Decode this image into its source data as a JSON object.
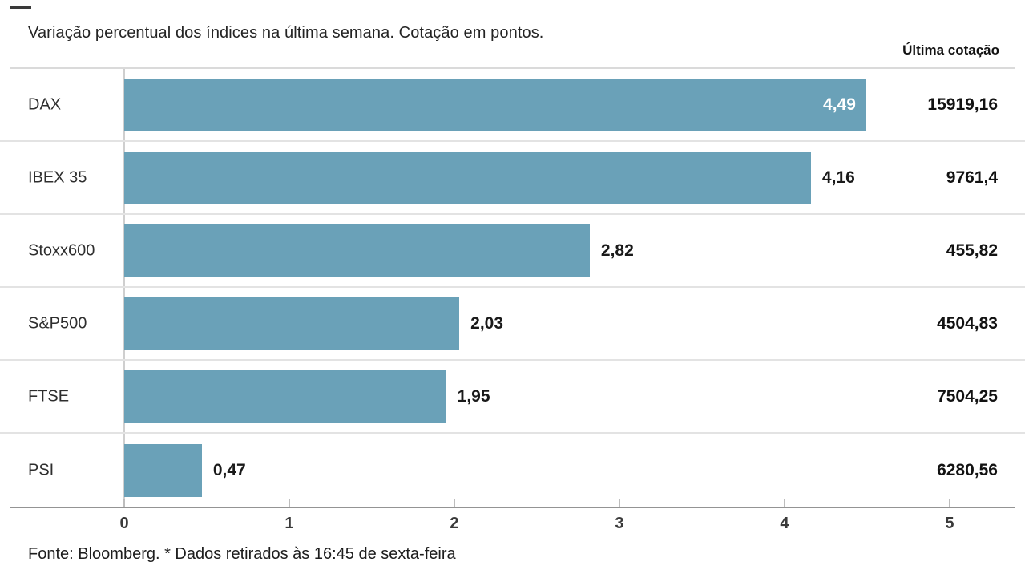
{
  "page": {
    "title": "Variação percentual dos índices na última semana. Cotação em pontos.",
    "column_header": "Última cotação",
    "footer": "Fonte: Bloomberg.  * Dados retirados às 16:45 de sexta-feira"
  },
  "chart_data": {
    "type": "bar",
    "orientation": "horizontal",
    "title": "Variação percentual dos índices na última semana. Cotação em pontos.",
    "categories": [
      "DAX",
      "IBEX 35",
      "Stoxx600",
      "S&P500",
      "FTSE",
      "PSI"
    ],
    "values": [
      4.49,
      4.16,
      2.82,
      2.03,
      1.95,
      0.47
    ],
    "value_labels": [
      "4,49",
      "4,16",
      "2,82",
      "2,03",
      "1,95",
      "0,47"
    ],
    "value_label_positions": [
      "inside",
      "outside",
      "outside",
      "outside",
      "outside",
      "outside"
    ],
    "last_quotation_header": "Última cotação",
    "last_quotations": [
      "15919,16",
      "9761,4",
      "455,82",
      "4504,83",
      "7504,25",
      "6280,56"
    ],
    "x_ticks": [
      0,
      1,
      2,
      3,
      4,
      5
    ],
    "x_tick_labels": [
      "0",
      "1",
      "2",
      "3",
      "4",
      "5"
    ],
    "xlim": [
      0,
      5.34
    ],
    "grid": false,
    "legend": "none",
    "source_note": "Fonte: Bloomberg.  * Dados retirados às 16:45 de sexta-feira",
    "bar_color": "#6AA1B8",
    "inside_label_color": "#FFFFFF",
    "outside_label_color": "#1A1A1A"
  }
}
